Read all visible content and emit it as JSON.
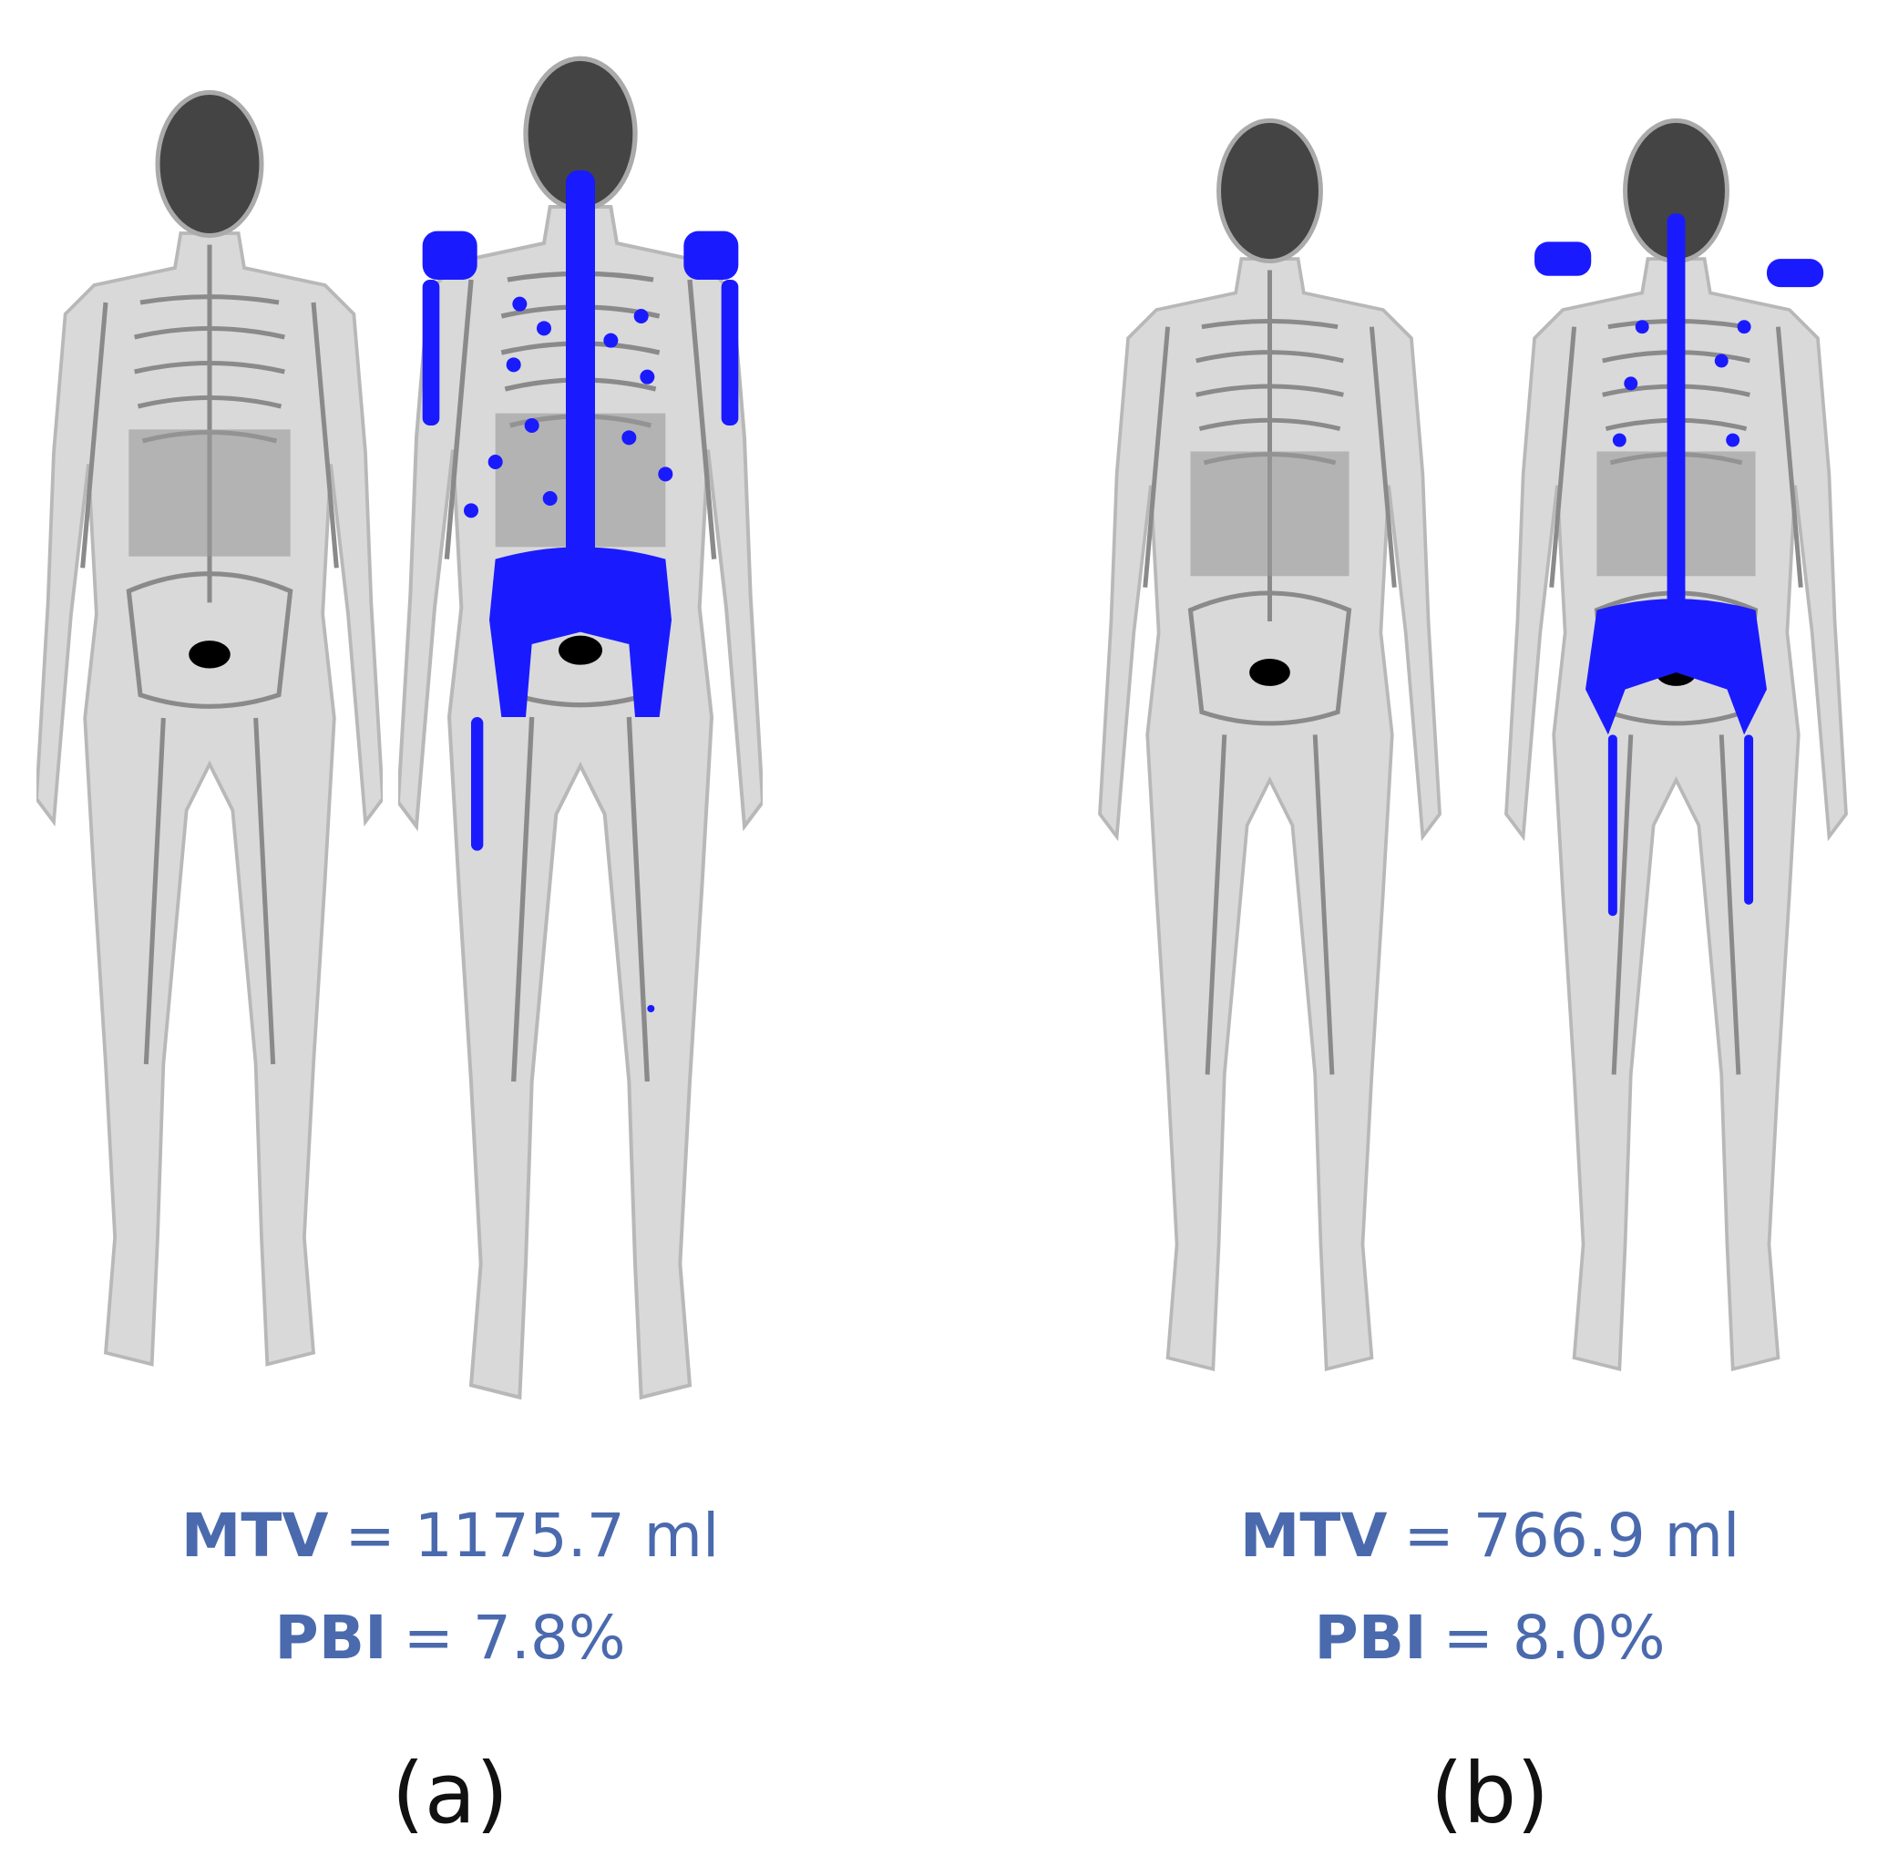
{
  "panels": [
    {
      "label": "(a)",
      "metrics": [
        {
          "name": "MTV",
          "text": "= 1175.7 ml"
        },
        {
          "name": "PBI",
          "text": "= 7.8%"
        }
      ]
    },
    {
      "label": "(b)",
      "metrics": [
        {
          "name": "MTV",
          "text": "= 766.9 ml"
        },
        {
          "name": "PBI",
          "text": "= 8.0%"
        }
      ]
    }
  ]
}
